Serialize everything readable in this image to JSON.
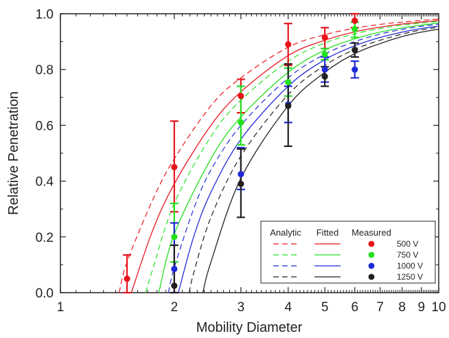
{
  "chart_data": {
    "type": "scatter",
    "xlabel": "Mobility Diameter",
    "ylabel": "Relative Penetration",
    "xscale": "log",
    "xlim": [
      1,
      10
    ],
    "ylim": [
      0,
      1
    ],
    "x_ticks": [
      1,
      2,
      3,
      4,
      5,
      6,
      7,
      8,
      9,
      10
    ],
    "x_tick_labels": [
      "1",
      "2",
      "3",
      "4",
      "5",
      "6",
      "7",
      "8",
      "9",
      "10"
    ],
    "y_ticks": [
      0,
      0.2,
      0.4,
      0.6,
      0.8,
      1.0
    ],
    "y_tick_labels": [
      "0.0",
      "0.2",
      "0.4",
      "0.6",
      "0.8",
      "1.0"
    ],
    "grid": false,
    "legend": {
      "position": "bottom-right",
      "headers": [
        "Analytic",
        "Fitted",
        "Measured"
      ],
      "entries": [
        "500 V",
        "750 V",
        "1000 V",
        "1250 V"
      ]
    },
    "series": [
      {
        "name": "500 V",
        "color": "#e8141c",
        "measured": {
          "x": [
            1.5,
            2,
            3,
            4,
            5,
            6
          ],
          "y": [
            0.05,
            0.45,
            0.705,
            0.89,
            0.915,
            0.975
          ],
          "err_low": [
            0.05,
            0.16,
            0.06,
            0.075,
            0.04,
            0.025
          ],
          "err_high": [
            0.085,
            0.165,
            0.06,
            0.075,
            0.035,
            0.03
          ]
        },
        "analytic_curve": {
          "x": [
            1.43,
            1.5,
            1.75,
            2,
            2.5,
            3,
            4,
            5,
            6,
            7,
            8,
            9,
            10
          ],
          "y": [
            0.0,
            0.11,
            0.33,
            0.48,
            0.67,
            0.77,
            0.88,
            0.925,
            0.948,
            0.962,
            0.97,
            0.976,
            0.981
          ]
        },
        "fitted_curve": {
          "x": [
            1.54,
            1.75,
            2,
            2.5,
            3,
            4,
            5,
            6,
            7,
            8,
            9,
            10
          ],
          "y": [
            0.0,
            0.22,
            0.39,
            0.6,
            0.72,
            0.85,
            0.905,
            0.935,
            0.952,
            0.963,
            0.97,
            0.976
          ]
        }
      },
      {
        "name": "750 V",
        "color": "#22e01e",
        "measured": {
          "x": [
            2,
            3,
            4,
            5,
            6
          ],
          "y": [
            0.2,
            0.61,
            0.755,
            0.855,
            0.945
          ],
          "err_low": [
            0.09,
            0.08,
            0.05,
            0.02,
            0.03
          ],
          "err_high": [
            0.12,
            0.13,
            0.05,
            0.02,
            0.025
          ]
        },
        "analytic_curve": {
          "x": [
            1.68,
            1.75,
            2,
            2.5,
            3,
            4,
            5,
            6,
            7,
            8,
            9,
            10
          ],
          "y": [
            0.0,
            0.08,
            0.32,
            0.56,
            0.69,
            0.83,
            0.895,
            0.928,
            0.947,
            0.959,
            0.967,
            0.973
          ]
        },
        "fitted_curve": {
          "x": [
            1.82,
            2,
            2.5,
            3,
            4,
            5,
            6,
            7,
            8,
            9,
            10
          ],
          "y": [
            0.0,
            0.21,
            0.48,
            0.63,
            0.79,
            0.87,
            0.91,
            0.934,
            0.949,
            0.959,
            0.967
          ]
        }
      },
      {
        "name": "1000 V",
        "color": "#1f2ad8",
        "measured": {
          "x": [
            2,
            3,
            4,
            5,
            6
          ],
          "y": [
            0.085,
            0.425,
            0.675,
            0.8,
            0.8
          ],
          "err_low": [
            0.085,
            0.055,
            0.065,
            0.045,
            0.03
          ],
          "err_high": [
            0.165,
            0.095,
            0.065,
            0.045,
            0.03
          ]
        },
        "analytic_curve": {
          "x": [
            1.93,
            2,
            2.25,
            2.5,
            3,
            4,
            5,
            6,
            7,
            8,
            9,
            10
          ],
          "y": [
            0.0,
            0.09,
            0.3,
            0.44,
            0.6,
            0.77,
            0.855,
            0.9,
            0.927,
            0.944,
            0.955,
            0.963
          ]
        },
        "fitted_curve": {
          "x": [
            2.05,
            2.25,
            2.5,
            3,
            4,
            5,
            6,
            7,
            8,
            9,
            10
          ],
          "y": [
            0.0,
            0.2,
            0.36,
            0.55,
            0.74,
            0.835,
            0.885,
            0.915,
            0.934,
            0.947,
            0.956
          ]
        }
      },
      {
        "name": "1250 V",
        "color": "#231f20",
        "measured": {
          "x": [
            2,
            3,
            4,
            5,
            6
          ],
          "y": [
            0.025,
            0.39,
            0.67,
            0.775,
            0.87
          ],
          "err_low": [
            0.025,
            0.12,
            0.145,
            0.035,
            0.025
          ],
          "err_high": [
            0.145,
            0.125,
            0.15,
            0.035,
            0.025
          ]
        },
        "analytic_curve": {
          "x": [
            2.19,
            2.25,
            2.5,
            3,
            4,
            5,
            6,
            7,
            8,
            9,
            10
          ],
          "y": [
            0.0,
            0.07,
            0.27,
            0.49,
            0.71,
            0.815,
            0.872,
            0.905,
            0.927,
            0.942,
            0.952
          ]
        },
        "fitted_curve": {
          "x": [
            2.38,
            2.5,
            3,
            4,
            5,
            6,
            7,
            8,
            9,
            10
          ],
          "y": [
            0.0,
            0.11,
            0.41,
            0.67,
            0.79,
            0.857,
            0.893,
            0.918,
            0.934,
            0.945
          ]
        }
      }
    ]
  }
}
